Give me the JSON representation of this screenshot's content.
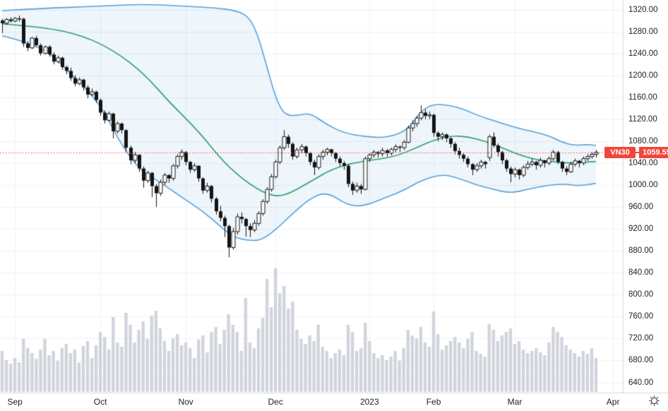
{
  "chart_data": {
    "type": "candlestick",
    "symbol": "VN30",
    "last_price": 1059.55,
    "last_price_label": "1059.55",
    "legend_position": "none",
    "grid": true,
    "y_axis": {
      "min": 640,
      "max": 1320,
      "step": 40,
      "decimals": 2
    },
    "x_axis": {
      "months": [
        {
          "label": "Sep",
          "i": 3
        },
        {
          "label": "Oct",
          "i": 23
        },
        {
          "label": "Nov",
          "i": 43
        },
        {
          "label": "Dec",
          "i": 64
        },
        {
          "label": "2023",
          "i": 86
        },
        {
          "label": "Feb",
          "i": 101
        },
        {
          "label": "Mar",
          "i": 120
        },
        {
          "label": "Apr",
          "i": 143
        }
      ]
    },
    "candles_format": [
      "open",
      "high",
      "low",
      "close",
      "volume_relative_px"
    ],
    "candles": [
      [
        1300,
        1303,
        1277,
        1295,
        58
      ],
      [
        1295,
        1304,
        1292,
        1302,
        45
      ],
      [
        1302,
        1306,
        1296,
        1299,
        40
      ],
      [
        1299,
        1306,
        1297,
        1304,
        48
      ],
      [
        1304,
        1309,
        1298,
        1302,
        42
      ],
      [
        1303,
        1305,
        1252,
        1258,
        75
      ],
      [
        1258,
        1262,
        1244,
        1250,
        62
      ],
      [
        1250,
        1270,
        1248,
        1268,
        55
      ],
      [
        1268,
        1272,
        1252,
        1255,
        47
      ],
      [
        1255,
        1258,
        1236,
        1240,
        60
      ],
      [
        1240,
        1254,
        1238,
        1252,
        75
      ],
      [
        1252,
        1255,
        1234,
        1238,
        52
      ],
      [
        1238,
        1242,
        1220,
        1225,
        58
      ],
      [
        1225,
        1236,
        1222,
        1232,
        44
      ],
      [
        1232,
        1234,
        1210,
        1215,
        62
      ],
      [
        1215,
        1218,
        1202,
        1208,
        68
      ],
      [
        1208,
        1214,
        1190,
        1195,
        55
      ],
      [
        1195,
        1200,
        1180,
        1185,
        60
      ],
      [
        1185,
        1196,
        1182,
        1192,
        42
      ],
      [
        1192,
        1194,
        1172,
        1178,
        65
      ],
      [
        1178,
        1182,
        1158,
        1165,
        72
      ],
      [
        1165,
        1176,
        1162,
        1170,
        48
      ],
      [
        1170,
        1172,
        1150,
        1155,
        66
      ],
      [
        1155,
        1158,
        1126,
        1132,
        85
      ],
      [
        1132,
        1136,
        1112,
        1118,
        78
      ],
      [
        1118,
        1134,
        1115,
        1130,
        60
      ],
      [
        1130,
        1132,
        1085,
        1098,
        106
      ],
      [
        1098,
        1116,
        1094,
        1112,
        70
      ],
      [
        1112,
        1114,
        1094,
        1100,
        64
      ],
      [
        1100,
        1102,
        1060,
        1068,
        112
      ],
      [
        1068,
        1072,
        1038,
        1045,
        95
      ],
      [
        1045,
        1060,
        1040,
        1055,
        70
      ],
      [
        1055,
        1056,
        1024,
        1030,
        88
      ],
      [
        1030,
        1034,
        995,
        1008,
        100
      ],
      [
        1008,
        1026,
        1004,
        1022,
        75
      ],
      [
        1022,
        1024,
        978,
        998,
        108
      ],
      [
        998,
        1002,
        960,
        985,
        115
      ],
      [
        985,
        1010,
        980,
        1005,
        90
      ],
      [
        1005,
        1022,
        1000,
        1018,
        72
      ],
      [
        1018,
        1020,
        1004,
        1012,
        58
      ],
      [
        1012,
        1038,
        1008,
        1035,
        76
      ],
      [
        1035,
        1056,
        1030,
        1052,
        82
      ],
      [
        1052,
        1065,
        1046,
        1060,
        66
      ],
      [
        1060,
        1062,
        1036,
        1042,
        70
      ],
      [
        1042,
        1044,
        1022,
        1028,
        62
      ],
      [
        1028,
        1040,
        1024,
        1035,
        48
      ],
      [
        1035,
        1036,
        1006,
        1012,
        74
      ],
      [
        1012,
        1014,
        984,
        990,
        80
      ],
      [
        990,
        1004,
        986,
        998,
        56
      ],
      [
        998,
        1000,
        968,
        975,
        85
      ],
      [
        975,
        978,
        946,
        952,
        92
      ],
      [
        952,
        962,
        934,
        940,
        68
      ],
      [
        940,
        944,
        905,
        925,
        88
      ],
      [
        925,
        928,
        868,
        886,
        110
      ],
      [
        886,
        922,
        882,
        915,
        95
      ],
      [
        915,
        948,
        910,
        942,
        85
      ],
      [
        942,
        950,
        930,
        938,
        58
      ],
      [
        938,
        940,
        906,
        925,
        133
      ],
      [
        925,
        930,
        905,
        918,
        70
      ],
      [
        918,
        936,
        914,
        930,
        62
      ],
      [
        930,
        952,
        926,
        948,
        90
      ],
      [
        948,
        974,
        944,
        970,
        105
      ],
      [
        970,
        996,
        966,
        992,
        160
      ],
      [
        992,
        1020,
        988,
        1015,
        120
      ],
      [
        1015,
        1046,
        1012,
        1042,
        175
      ],
      [
        1042,
        1072,
        1038,
        1068,
        140
      ],
      [
        1068,
        1100,
        1064,
        1088,
        150
      ],
      [
        1088,
        1092,
        1068,
        1075,
        118
      ],
      [
        1075,
        1078,
        1046,
        1052,
        128
      ],
      [
        1052,
        1068,
        1048,
        1064,
        88
      ],
      [
        1064,
        1075,
        1058,
        1070,
        75
      ],
      [
        1070,
        1072,
        1052,
        1058,
        68
      ],
      [
        1058,
        1060,
        1036,
        1042,
        80
      ],
      [
        1042,
        1046,
        1018,
        1032,
        72
      ],
      [
        1032,
        1056,
        1028,
        1052,
        95
      ],
      [
        1052,
        1064,
        1046,
        1060,
        64
      ],
      [
        1060,
        1068,
        1054,
        1065,
        58
      ],
      [
        1065,
        1066,
        1052,
        1058,
        48
      ],
      [
        1058,
        1060,
        1042,
        1048,
        55
      ],
      [
        1048,
        1052,
        1034,
        1040,
        60
      ],
      [
        1040,
        1044,
        1028,
        1035,
        52
      ],
      [
        1035,
        1038,
        996,
        1002,
        95
      ],
      [
        1002,
        1006,
        982,
        990,
        85
      ],
      [
        990,
        1004,
        986,
        998,
        58
      ],
      [
        998,
        1002,
        984,
        992,
        62
      ],
      [
        992,
        1052,
        990,
        1048,
        98
      ],
      [
        1048,
        1058,
        1042,
        1055,
        72
      ],
      [
        1055,
        1064,
        1050,
        1060,
        55
      ],
      [
        1060,
        1062,
        1050,
        1057,
        48
      ],
      [
        1057,
        1068,
        1052,
        1063,
        52
      ],
      [
        1063,
        1066,
        1052,
        1058,
        45
      ],
      [
        1058,
        1068,
        1054,
        1065,
        50
      ],
      [
        1065,
        1074,
        1060,
        1070,
        58
      ],
      [
        1070,
        1072,
        1060,
        1068,
        44
      ],
      [
        1068,
        1082,
        1064,
        1078,
        62
      ],
      [
        1078,
        1108,
        1076,
        1104,
        88
      ],
      [
        1104,
        1118,
        1098,
        1112,
        80
      ],
      [
        1112,
        1126,
        1106,
        1122,
        76
      ],
      [
        1122,
        1145,
        1118,
        1132,
        92
      ],
      [
        1132,
        1138,
        1120,
        1126,
        70
      ],
      [
        1126,
        1134,
        1120,
        1128,
        64
      ],
      [
        1128,
        1130,
        1088,
        1095,
        114
      ],
      [
        1095,
        1098,
        1080,
        1088,
        82
      ],
      [
        1088,
        1096,
        1082,
        1092,
        60
      ],
      [
        1092,
        1094,
        1078,
        1085,
        66
      ],
      [
        1085,
        1088,
        1068,
        1075,
        72
      ],
      [
        1075,
        1078,
        1056,
        1062,
        78
      ],
      [
        1062,
        1068,
        1048,
        1055,
        70
      ],
      [
        1055,
        1058,
        1042,
        1048,
        62
      ],
      [
        1048,
        1052,
        1032,
        1038,
        75
      ],
      [
        1038,
        1040,
        1018,
        1028,
        85
      ],
      [
        1028,
        1040,
        1024,
        1035,
        58
      ],
      [
        1035,
        1046,
        1030,
        1042,
        54
      ],
      [
        1042,
        1044,
        1030,
        1038,
        50
      ],
      [
        1050,
        1092,
        1044,
        1088,
        96
      ],
      [
        1088,
        1096,
        1068,
        1072,
        88
      ],
      [
        1072,
        1076,
        1052,
        1060,
        72
      ],
      [
        1060,
        1062,
        1038,
        1045,
        80
      ],
      [
        1045,
        1048,
        1024,
        1030,
        85
      ],
      [
        1030,
        1034,
        1005,
        1020,
        90
      ],
      [
        1020,
        1032,
        1014,
        1028,
        68
      ],
      [
        1028,
        1030,
        1010,
        1018,
        72
      ],
      [
        1018,
        1036,
        1014,
        1032,
        60
      ],
      [
        1032,
        1044,
        1028,
        1038,
        55
      ],
      [
        1038,
        1048,
        1034,
        1042,
        58
      ],
      [
        1042,
        1044,
        1028,
        1036,
        62
      ],
      [
        1036,
        1050,
        1032,
        1045,
        56
      ],
      [
        1045,
        1046,
        1032,
        1040,
        52
      ],
      [
        1040,
        1052,
        1036,
        1048,
        70
      ],
      [
        1048,
        1064,
        1044,
        1060,
        92
      ],
      [
        1060,
        1062,
        1038,
        1042,
        85
      ],
      [
        1042,
        1044,
        1024,
        1030,
        78
      ],
      [
        1030,
        1034,
        1018,
        1024,
        66
      ],
      [
        1024,
        1042,
        1022,
        1038,
        60
      ],
      [
        1038,
        1048,
        1034,
        1044,
        55
      ],
      [
        1044,
        1046,
        1032,
        1040,
        50
      ],
      [
        1040,
        1052,
        1036,
        1048,
        58
      ],
      [
        1048,
        1056,
        1044,
        1052,
        54
      ],
      [
        1052,
        1060,
        1048,
        1056,
        62
      ],
      [
        1056,
        1064,
        1050,
        1059.55,
        48
      ]
    ],
    "bollinger_bands": {
      "upper_anchors": [
        [
          0,
          1318
        ],
        [
          9,
          1322
        ],
        [
          23,
          1326
        ],
        [
          33,
          1330
        ],
        [
          43,
          1326
        ],
        [
          50,
          1323
        ],
        [
          55,
          1318
        ],
        [
          58,
          1305
        ],
        [
          60,
          1270
        ],
        [
          62,
          1215
        ],
        [
          64,
          1160
        ],
        [
          66,
          1128
        ],
        [
          69,
          1126
        ],
        [
          72,
          1132
        ],
        [
          76,
          1110
        ],
        [
          80,
          1095
        ],
        [
          85,
          1088
        ],
        [
          90,
          1086
        ],
        [
          95,
          1100
        ],
        [
          98,
          1135
        ],
        [
          101,
          1148
        ],
        [
          105,
          1145
        ],
        [
          108,
          1138
        ],
        [
          112,
          1125
        ],
        [
          116,
          1115
        ],
        [
          120,
          1105
        ],
        [
          124,
          1098
        ],
        [
          128,
          1090
        ],
        [
          131,
          1078
        ],
        [
          134,
          1072
        ],
        [
          137,
          1074
        ],
        [
          139,
          1072
        ]
      ],
      "middle_anchors": [
        [
          0,
          1294
        ],
        [
          10,
          1288
        ],
        [
          19,
          1272
        ],
        [
          26,
          1246
        ],
        [
          33,
          1205
        ],
        [
          39,
          1152
        ],
        [
          46,
          1098
        ],
        [
          52,
          1040
        ],
        [
          58,
          1000
        ],
        [
          63,
          980
        ],
        [
          66,
          981
        ],
        [
          69,
          992
        ],
        [
          73,
          1010
        ],
        [
          77,
          1028
        ],
        [
          82,
          1040
        ],
        [
          87,
          1046
        ],
        [
          92,
          1052
        ],
        [
          97,
          1068
        ],
        [
          101,
          1082
        ],
        [
          105,
          1090
        ],
        [
          109,
          1088
        ],
        [
          113,
          1080
        ],
        [
          117,
          1068
        ],
        [
          121,
          1055
        ],
        [
          125,
          1046
        ],
        [
          129,
          1042
        ],
        [
          133,
          1040
        ],
        [
          139,
          1043
        ]
      ],
      "lower_anchors": [
        [
          0,
          1272
        ],
        [
          9,
          1255
        ],
        [
          15,
          1212
        ],
        [
          23,
          1148
        ],
        [
          27,
          1085
        ],
        [
          32,
          1028
        ],
        [
          37,
          1005
        ],
        [
          42,
          978
        ],
        [
          47,
          952
        ],
        [
          51,
          925
        ],
        [
          54,
          905
        ],
        [
          58,
          898
        ],
        [
          61,
          900
        ],
        [
          65,
          925
        ],
        [
          68,
          948
        ],
        [
          72,
          975
        ],
        [
          76,
          988
        ],
        [
          81,
          962
        ],
        [
          85,
          962
        ],
        [
          90,
          978
        ],
        [
          94,
          990
        ],
        [
          98,
          1008
        ],
        [
          103,
          1020
        ],
        [
          107,
          1012
        ],
        [
          111,
          1000
        ],
        [
          115,
          992
        ],
        [
          119,
          985
        ],
        [
          123,
          992
        ],
        [
          128,
          1000
        ],
        [
          132,
          1002
        ],
        [
          135,
          998
        ],
        [
          139,
          1003
        ]
      ]
    },
    "colors": {
      "up_candle": "#ffffff",
      "down_candle": "#141414",
      "candle_outline": "#141414",
      "volume_bar": "#d1d4dc",
      "grid": "#eef0f4",
      "band_line": "#55a0da",
      "band_fill": "rgba(85,160,218,0.10)",
      "basis_line": "#2f9c6e",
      "last_price": "#f0463c",
      "axis_text": "#1c1f26",
      "axis_border": "#d8dade"
    },
    "icons": {
      "axis_settings": "gear-icon"
    }
  }
}
